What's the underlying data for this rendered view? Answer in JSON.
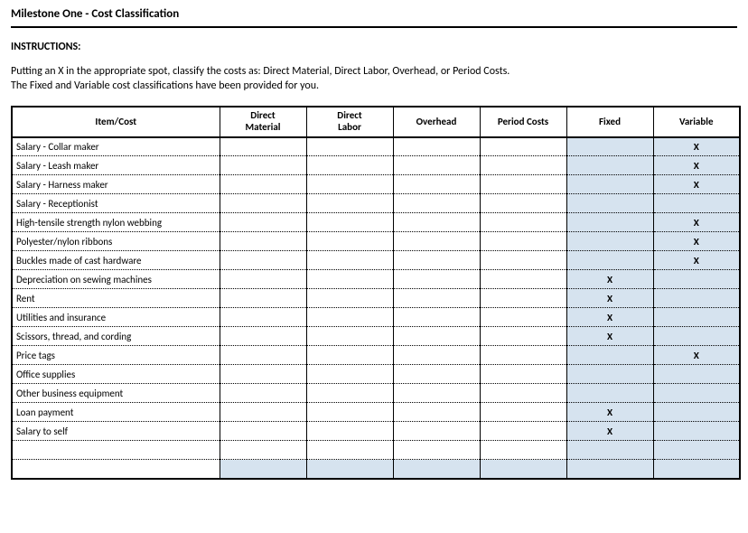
{
  "title": "Milestone One - Cost Classification",
  "instructions_label": "INSTRUCTIONS:",
  "instructions_line1": "Putting an X in the appropriate spot, classify the costs as:  Direct Material, Direct Labor, Overhead, or Period Costs.",
  "instructions_line2": "The Fixed and Variable cost classifications have been provided for you.",
  "mark_char": "X",
  "columns": {
    "item": "Item/Cost",
    "dm": "Direct Material",
    "dl": "Direct Labor",
    "oh": "Overhead",
    "pc": "Period Costs",
    "fixed": "Fixed",
    "variable": "Variable"
  },
  "colors": {
    "shaded_bg": "#d6e3ef"
  },
  "rows": [
    {
      "item": "Salary - Collar maker",
      "dm": "",
      "dl": "",
      "oh": "",
      "pc": "",
      "fixed": "",
      "variable": "X"
    },
    {
      "item": "Salary - Leash maker",
      "dm": "",
      "dl": "",
      "oh": "",
      "pc": "",
      "fixed": "",
      "variable": "X"
    },
    {
      "item": "Salary - Harness maker",
      "dm": "",
      "dl": "",
      "oh": "",
      "pc": "",
      "fixed": "",
      "variable": "X"
    },
    {
      "item": "Salary - Receptionist",
      "dm": "",
      "dl": "",
      "oh": "",
      "pc": "",
      "fixed": "",
      "variable": ""
    },
    {
      "item": "High-tensile strength nylon webbing",
      "dm": "",
      "dl": "",
      "oh": "",
      "pc": "",
      "fixed": "",
      "variable": "X"
    },
    {
      "item": "Polyester/nylon ribbons",
      "dm": "",
      "dl": "",
      "oh": "",
      "pc": "",
      "fixed": "",
      "variable": "X"
    },
    {
      "item": "Buckles made of cast hardware",
      "dm": "",
      "dl": "",
      "oh": "",
      "pc": "",
      "fixed": "",
      "variable": "X"
    },
    {
      "item": "Depreciation on sewing machines",
      "dm": "",
      "dl": "",
      "oh": "",
      "pc": "",
      "fixed": "X",
      "variable": ""
    },
    {
      "item": "Rent",
      "dm": "",
      "dl": "",
      "oh": "",
      "pc": "",
      "fixed": "X",
      "variable": ""
    },
    {
      "item": "Utilities and insurance",
      "dm": "",
      "dl": "",
      "oh": "",
      "pc": "",
      "fixed": "X",
      "variable": ""
    },
    {
      "item": "Scissors, thread, and cording",
      "dm": "",
      "dl": "",
      "oh": "",
      "pc": "",
      "fixed": "X",
      "variable": ""
    },
    {
      "item": "Price tags",
      "dm": "",
      "dl": "",
      "oh": "",
      "pc": "",
      "fixed": "",
      "variable": "X"
    },
    {
      "item": "Office supplies",
      "dm": "",
      "dl": "",
      "oh": "",
      "pc": "",
      "fixed": "",
      "variable": ""
    },
    {
      "item": "Other business equipment",
      "dm": "",
      "dl": "",
      "oh": "",
      "pc": "",
      "fixed": "",
      "variable": ""
    },
    {
      "item": "Loan payment",
      "dm": "",
      "dl": "",
      "oh": "",
      "pc": "",
      "fixed": "X",
      "variable": ""
    },
    {
      "item": "Salary to self",
      "dm": "",
      "dl": "",
      "oh": "",
      "pc": "",
      "fixed": "X",
      "variable": ""
    },
    {
      "item": "",
      "dm": "",
      "dl": "",
      "oh": "",
      "pc": "",
      "fixed": "",
      "variable": ""
    },
    {
      "item": "",
      "dm": "",
      "dl": "",
      "oh": "",
      "pc": "",
      "fixed": "",
      "variable": ""
    }
  ]
}
